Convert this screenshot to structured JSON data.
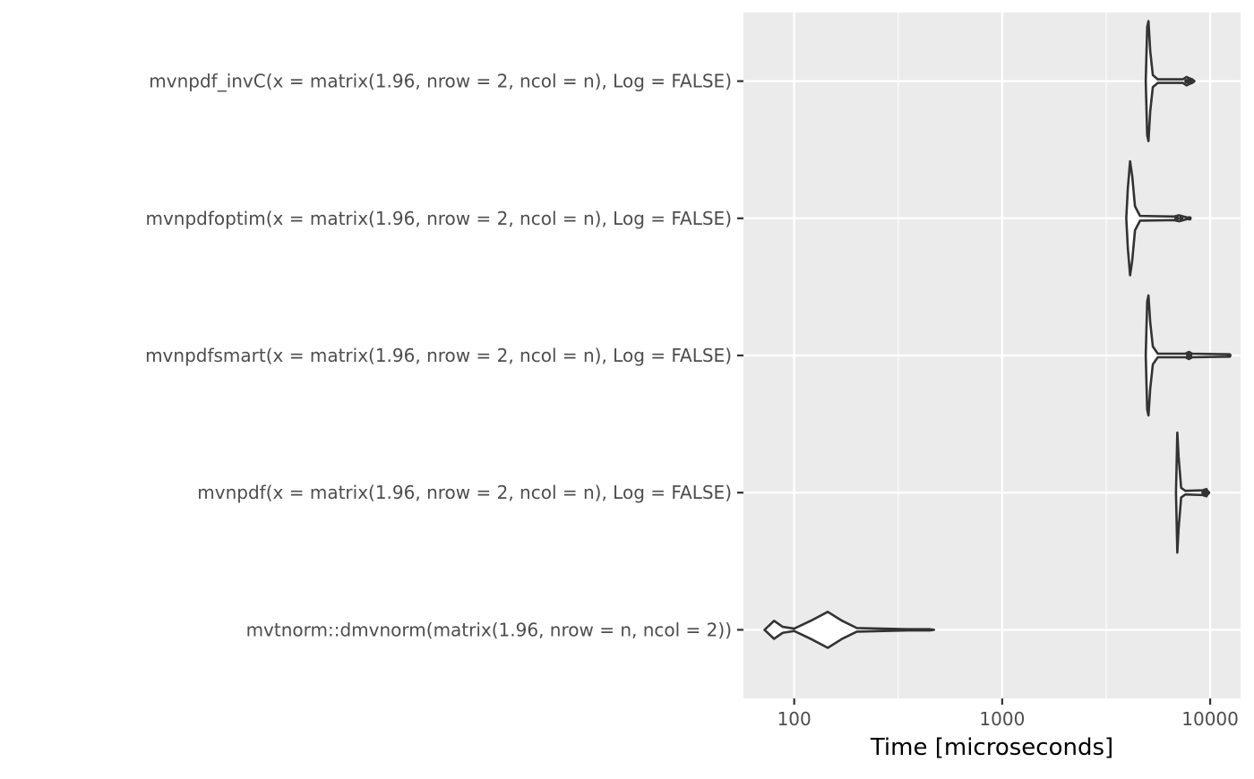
{
  "chart_data": {
    "type": "violin",
    "orientation": "horizontal",
    "xlabel": "Time [microseconds]",
    "ylabel": "",
    "x_scale": "log10",
    "xlim": [
      57,
      14000
    ],
    "x_ticks": [
      {
        "value": 100,
        "label": "100"
      },
      {
        "value": 1000,
        "label": "1000"
      },
      {
        "value": 10000,
        "label": "10000"
      }
    ],
    "x_minor_ticks": [
      316.2,
      3162.3
    ],
    "grid": true,
    "legend": "none",
    "colors": {
      "panel_background": "#ebebeb",
      "grid_major": "#ffffff",
      "violin_stroke": "#333333",
      "tick_label": "#4d4d4d",
      "axis_title": "#000000"
    },
    "series": [
      {
        "label": "mvnpdf_invC(x = matrix(1.96, nrow = 2, ncol = n), Log = FALSE)",
        "min": 4900,
        "max": 8400,
        "profile": [
          [
            4900,
            0.0
          ],
          [
            4980,
            0.9
          ],
          [
            5050,
            1.0
          ],
          [
            5150,
            0.5
          ],
          [
            5300,
            0.1
          ],
          [
            5600,
            0.03
          ],
          [
            7400,
            0.03
          ],
          [
            7700,
            0.07
          ],
          [
            7900,
            0.05
          ],
          [
            8200,
            0.03
          ],
          [
            8400,
            0.0
          ]
        ],
        "outliers": [
          7700,
          7850,
          8000
        ]
      },
      {
        "label": "mvnpdfoptim(x = matrix(1.96, nrow = 2, ncol = n), Log = FALSE)",
        "min": 3950,
        "max": 8000,
        "profile": [
          [
            3950,
            0.0
          ],
          [
            4020,
            0.5
          ],
          [
            4120,
            0.95
          ],
          [
            4220,
            0.7
          ],
          [
            4350,
            0.2
          ],
          [
            4600,
            0.04
          ],
          [
            6700,
            0.03
          ],
          [
            7100,
            0.05
          ],
          [
            8000,
            0.0
          ]
        ],
        "outliers": [
          6900,
          7250,
          7950
        ]
      },
      {
        "label": "mvnpdfsmart(x = matrix(1.96, nrow = 2, ncol = n), Log = FALSE)",
        "min": 4900,
        "max": 12500,
        "profile": [
          [
            4900,
            0.0
          ],
          [
            4980,
            0.9
          ],
          [
            5050,
            1.0
          ],
          [
            5150,
            0.55
          ],
          [
            5300,
            0.15
          ],
          [
            5600,
            0.03
          ],
          [
            7600,
            0.03
          ],
          [
            7900,
            0.06
          ],
          [
            8200,
            0.03
          ],
          [
            12400,
            0.02
          ],
          [
            12500,
            0.0
          ]
        ],
        "outliers": [
          7850,
          8000,
          12350
        ]
      },
      {
        "label": "mvnpdf(x = matrix(1.96, nrow = 2, ncol = n), Log = FALSE)",
        "min": 6850,
        "max": 9800,
        "profile": [
          [
            6850,
            0.0
          ],
          [
            6950,
            1.0
          ],
          [
            7050,
            0.6
          ],
          [
            7250,
            0.08
          ],
          [
            7600,
            0.03
          ],
          [
            9200,
            0.04
          ],
          [
            9600,
            0.06
          ],
          [
            9800,
            0.0
          ]
        ],
        "outliers": [
          9300,
          9550,
          9750
        ]
      },
      {
        "label": "mvtnorm::dmvnorm(matrix(1.96, nrow = n, ncol = 2))",
        "min": 72,
        "max": 470,
        "profile": [
          [
            72,
            0.0
          ],
          [
            80,
            0.15
          ],
          [
            88,
            0.05
          ],
          [
            100,
            0.02
          ],
          [
            120,
            0.15
          ],
          [
            145,
            0.3
          ],
          [
            170,
            0.15
          ],
          [
            200,
            0.03
          ],
          [
            350,
            0.01
          ],
          [
            450,
            0.01
          ],
          [
            470,
            0.0
          ]
        ],
        "outliers": []
      }
    ]
  }
}
